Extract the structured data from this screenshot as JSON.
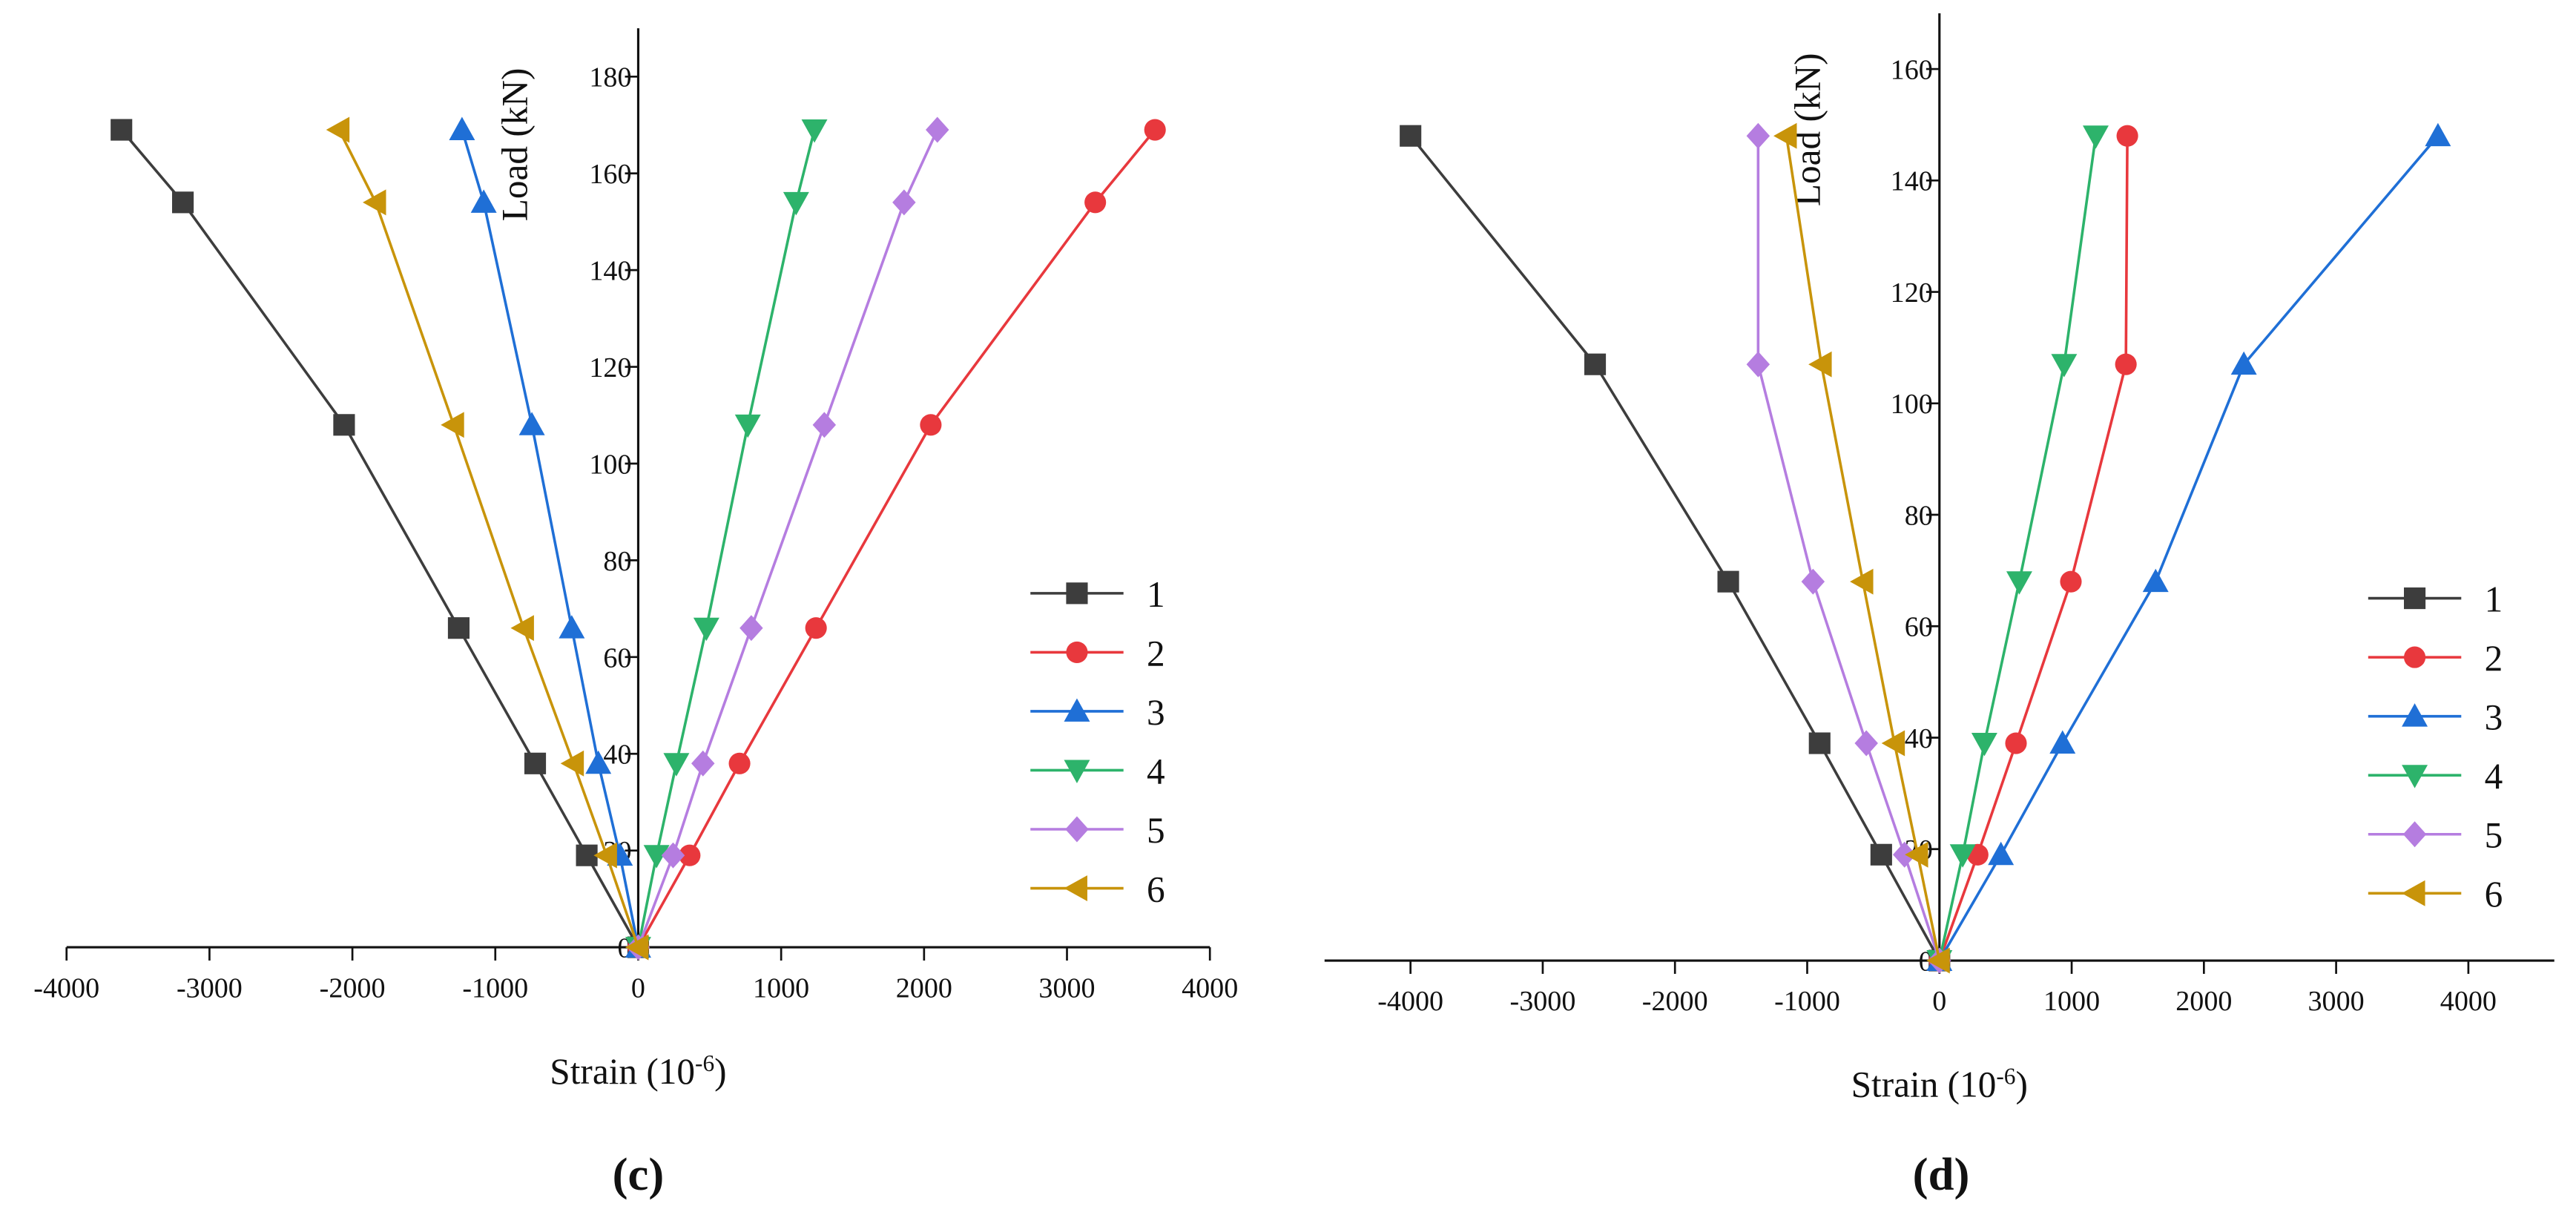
{
  "chart_data": [
    {
      "type": "line",
      "panel": "(c)",
      "y_label": "Load (kN)",
      "x_label": [
        "Strain (10",
        "-6",
        ")"
      ],
      "xlim": [
        -4000,
        4000
      ],
      "xticks": [
        -4000,
        -3000,
        -2000,
        -1000,
        0,
        1000,
        2000,
        3000,
        4000
      ],
      "ylim": [
        0,
        190
      ],
      "yticks": [
        0,
        20,
        40,
        60,
        80,
        100,
        120,
        140,
        160,
        180
      ],
      "legend": "right",
      "series": [
        {
          "name": "1",
          "color": "#3d3d3d",
          "marker": "square",
          "x": [
            0,
            -360,
            -721,
            -1256,
            -2058,
            -3186,
            -3616
          ],
          "values": [
            0,
            19,
            38,
            66,
            108,
            154,
            169
          ]
        },
        {
          "name": "2",
          "color": "#e8383d",
          "marker": "circle",
          "x": [
            0,
            360,
            709,
            1244,
            2047,
            3198,
            3616
          ],
          "values": [
            0,
            19,
            38,
            66,
            108,
            154,
            169
          ]
        },
        {
          "name": "3",
          "color": "#1f6fd6",
          "marker": "triangle-up",
          "x": [
            0,
            -128,
            -279,
            -465,
            -744,
            -1081,
            -1233
          ],
          "values": [
            0,
            19,
            38,
            66,
            108,
            154,
            169
          ]
        },
        {
          "name": "4",
          "color": "#2db36b",
          "marker": "triangle-down",
          "x": [
            0,
            128,
            267,
            477,
            767,
            1105,
            1233
          ],
          "values": [
            0,
            19,
            38,
            66,
            108,
            154,
            169
          ]
        },
        {
          "name": "5",
          "color": "#b57de0",
          "marker": "diamond",
          "x": [
            0,
            244,
            453,
            791,
            1302,
            1860,
            2093
          ],
          "values": [
            0,
            19,
            38,
            66,
            108,
            154,
            169
          ]
        },
        {
          "name": "6",
          "color": "#c8940a",
          "marker": "triangle-left",
          "x": [
            0,
            -221,
            -453,
            -802,
            -1291,
            -1837,
            -2093
          ],
          "values": [
            0,
            19,
            38,
            66,
            108,
            154,
            169
          ]
        }
      ]
    },
    {
      "type": "line",
      "panel": "(d)",
      "y_label": "Load (kN)",
      "x_label": [
        "Strain (10",
        "-6",
        ")"
      ],
      "xlim": [
        -4650,
        4650
      ],
      "xticks": [
        -4000,
        -3000,
        -2000,
        -1000,
        0,
        1000,
        2000,
        3000,
        4000
      ],
      "ylim": [
        0,
        170
      ],
      "yticks": [
        0,
        20,
        40,
        60,
        80,
        100,
        120,
        140,
        160
      ],
      "legend": "right",
      "series": [
        {
          "name": "1",
          "color": "#3d3d3d",
          "marker": "square",
          "x": [
            0,
            -440,
            -906,
            -1597,
            -2604,
            -4000
          ],
          "values": [
            0,
            19,
            39,
            68,
            107,
            148
          ]
        },
        {
          "name": "2",
          "color": "#e8383d",
          "marker": "circle",
          "x": [
            0,
            289,
            579,
            994,
            1410,
            1421
          ],
          "values": [
            0,
            19,
            39,
            68,
            107,
            148
          ]
        },
        {
          "name": "3",
          "color": "#1f6fd6",
          "marker": "triangle-up",
          "x": [
            0,
            465,
            931,
            1635,
            2302,
            3770
          ],
          "values": [
            0,
            19,
            39,
            68,
            107,
            148
          ]
        },
        {
          "name": "4",
          "color": "#2db36b",
          "marker": "triangle-down",
          "x": [
            0,
            176,
            340,
            604,
            943,
            1182
          ],
          "values": [
            0,
            19,
            39,
            68,
            107,
            148
          ]
        },
        {
          "name": "5",
          "color": "#b57de0",
          "marker": "diamond",
          "x": [
            0,
            -264,
            -553,
            -956,
            -1371,
            -1371
          ],
          "values": [
            0,
            19,
            39,
            68,
            107,
            148
          ]
        },
        {
          "name": "6",
          "color": "#c8940a",
          "marker": "triangle-left",
          "x": [
            0,
            -164,
            -340,
            -579,
            -893,
            -1157
          ],
          "values": [
            0,
            19,
            39,
            68,
            107,
            148
          ]
        }
      ]
    }
  ]
}
